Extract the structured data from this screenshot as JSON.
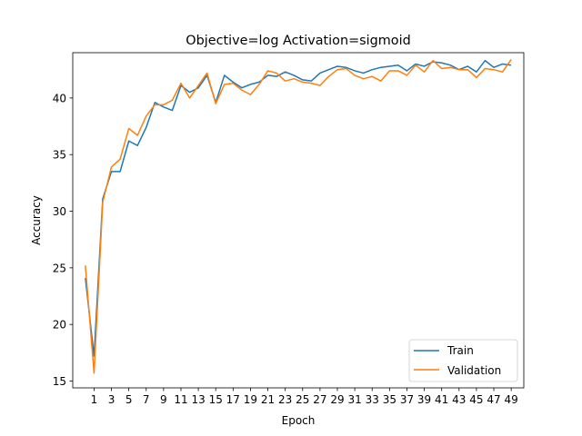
{
  "chart_data": {
    "type": "line",
    "title": "Objective=log Activation=sigmoid",
    "xlabel": "Epoch",
    "ylabel": "Accuracy",
    "xlim": [
      -1.45,
      50.45
    ],
    "ylim": [
      14.4,
      44.0
    ],
    "x_ticks": [
      1,
      3,
      5,
      7,
      9,
      11,
      13,
      15,
      17,
      19,
      21,
      23,
      25,
      27,
      29,
      31,
      33,
      35,
      37,
      39,
      41,
      43,
      45,
      47,
      49
    ],
    "y_ticks": [
      15,
      20,
      25,
      30,
      35,
      40
    ],
    "grid": false,
    "legend_position": "lower-right",
    "x": [
      0,
      1,
      2,
      3,
      4,
      5,
      6,
      7,
      8,
      9,
      10,
      11,
      12,
      13,
      14,
      15,
      16,
      17,
      18,
      19,
      20,
      21,
      22,
      23,
      24,
      25,
      26,
      27,
      28,
      29,
      30,
      31,
      32,
      33,
      34,
      35,
      36,
      37,
      38,
      39,
      40,
      41,
      42,
      43,
      44,
      45,
      46,
      47,
      48,
      49
    ],
    "series": [
      {
        "name": "Train",
        "color": "#1f77b4",
        "values": [
          24.1,
          17.2,
          31.1,
          33.5,
          33.5,
          36.2,
          35.8,
          37.4,
          39.6,
          39.2,
          38.9,
          41.1,
          40.5,
          40.9,
          42.0,
          39.6,
          42.0,
          41.4,
          40.9,
          41.2,
          41.4,
          42.0,
          41.9,
          42.3,
          42.0,
          41.6,
          41.5,
          42.2,
          42.5,
          42.8,
          42.7,
          42.4,
          42.2,
          42.5,
          42.7,
          42.8,
          42.9,
          42.4,
          43.0,
          42.8,
          43.2,
          43.1,
          42.9,
          42.5,
          42.8,
          42.3,
          43.3,
          42.7,
          43.0,
          42.9
        ]
      },
      {
        "name": "Validation",
        "color": "#ff7f0e",
        "values": [
          25.2,
          15.7,
          30.8,
          33.9,
          34.6,
          37.3,
          36.7,
          38.4,
          39.4,
          39.4,
          39.8,
          41.3,
          40.0,
          41.1,
          42.2,
          39.5,
          41.2,
          41.3,
          40.7,
          40.3,
          41.2,
          42.4,
          42.2,
          41.5,
          41.7,
          41.4,
          41.3,
          41.1,
          41.9,
          42.5,
          42.6,
          42.0,
          41.7,
          41.9,
          41.5,
          42.4,
          42.4,
          42.0,
          42.9,
          42.3,
          43.3,
          42.6,
          42.7,
          42.5,
          42.5,
          41.8,
          42.6,
          42.5,
          42.3,
          43.4
        ]
      }
    ]
  }
}
